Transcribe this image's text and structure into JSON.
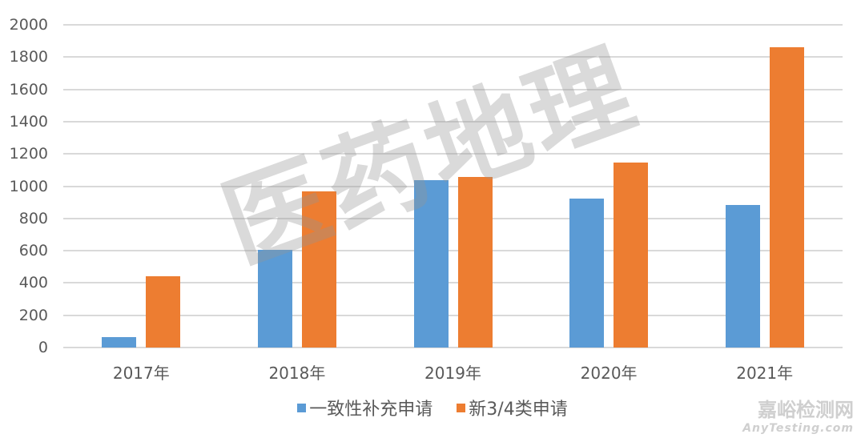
{
  "chart_data": {
    "type": "bar",
    "title": "",
    "xlabel": "",
    "ylabel": "",
    "ylim": [
      0,
      2000
    ],
    "yticks": [
      0,
      200,
      400,
      600,
      800,
      1000,
      1200,
      1400,
      1600,
      1800,
      2000
    ],
    "grid": true,
    "legend_position": "bottom",
    "categories": [
      "2017年",
      "2018年",
      "2019年",
      "2020年",
      "2021年"
    ],
    "series": [
      {
        "name": "一致性补充申请",
        "color": "#5b9bd5",
        "values": [
          63,
          607,
          1037,
          922,
          882
        ]
      },
      {
        "name": "新3/4类申请",
        "color": "#ed7d31",
        "values": [
          440,
          970,
          1057,
          1147,
          1860
        ]
      }
    ]
  },
  "watermarks": {
    "center": "医药地理",
    "site_cn": "嘉峪检测网",
    "site_en": "AnyTesting.com"
  }
}
